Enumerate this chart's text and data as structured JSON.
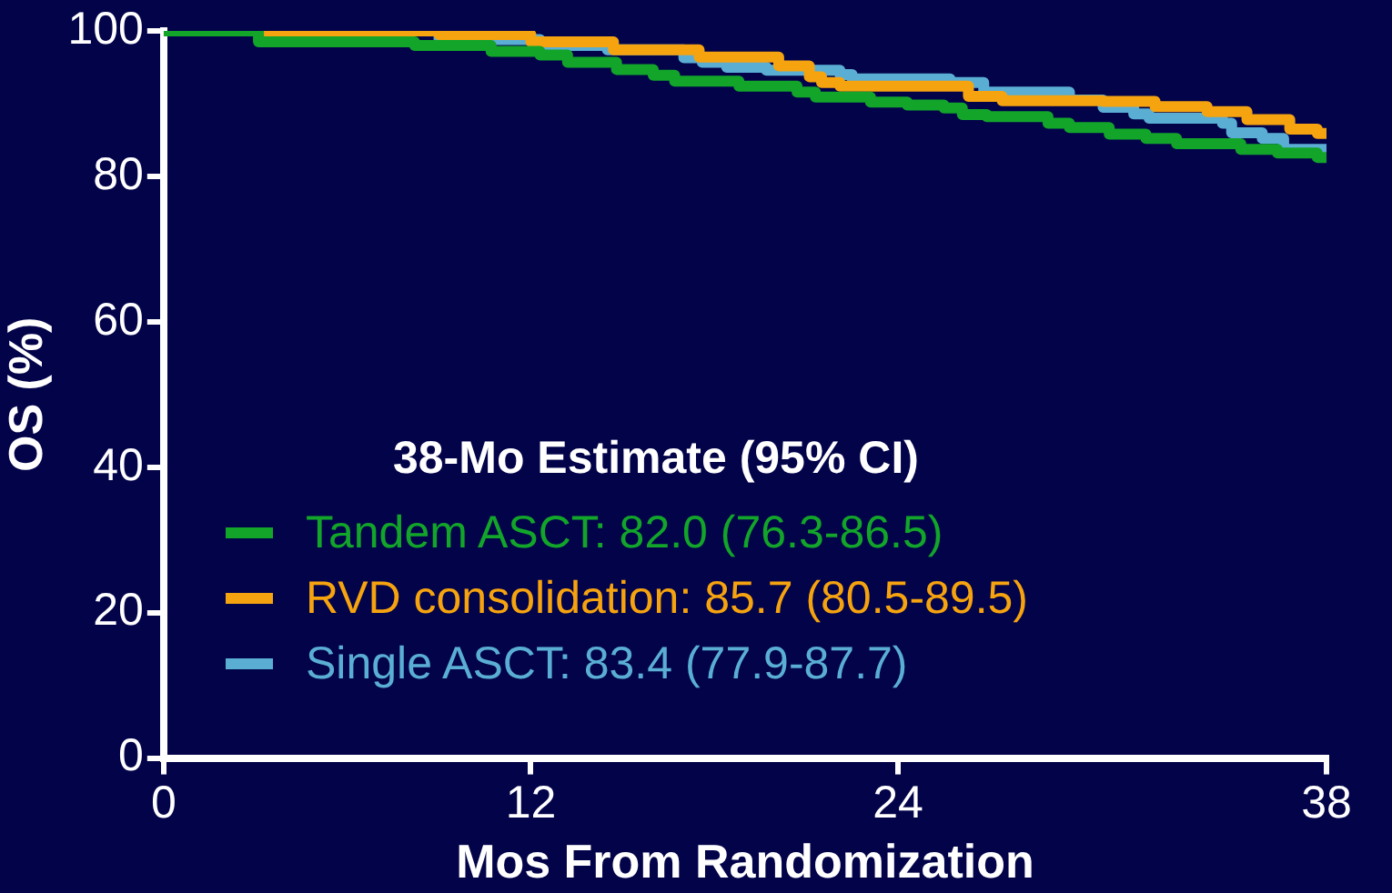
{
  "chart_data": {
    "type": "step",
    "xlabel": "Mos From Randomization",
    "ylabel": "OS (%)",
    "legend_title": "38-Mo Estimate (95% CI)",
    "legend": "bottom left",
    "grid": false,
    "marker": "none",
    "line_style": "solid",
    "xlim": [
      0,
      38
    ],
    "xticks": [
      0,
      12,
      24,
      38
    ],
    "ylim": [
      0,
      100
    ],
    "yticks": [
      0,
      20,
      40,
      60,
      80,
      100
    ],
    "series": [
      {
        "name": "Tandem ASCT: 82.0 (76.3-86.5)",
        "color": "#12a52a",
        "x": [
          0,
          3.1,
          8.2,
          10.7,
          12.3,
          13.2,
          14.8,
          16.0,
          16.7,
          18.8,
          20.7,
          21.3,
          23.1,
          24.3,
          25.5,
          26.1,
          26.9,
          28.9,
          29.6,
          30.9,
          32.1,
          33.1,
          35.2,
          36.4,
          37.7,
          38
        ],
        "values": [
          100,
          98.5,
          98,
          97.2,
          96.7,
          95.7,
          94.7,
          93.9,
          93.1,
          92.4,
          91.6,
          90.9,
          90.2,
          89.8,
          89.4,
          88.5,
          88.2,
          87.3,
          86.7,
          85.8,
          85.2,
          84.5,
          83.7,
          83.2,
          82.6,
          82
        ]
      },
      {
        "name": "RVD consolidation: 85.7 (80.5-89.5)",
        "color": "#f5a30f",
        "x": [
          0,
          9,
          12,
          14.7,
          17.5,
          20.1,
          21.1,
          21.5,
          22.1,
          26.3,
          27.4,
          30.7,
          32.4,
          34.1,
          35.4,
          36.8,
          37.7,
          38
        ],
        "values": [
          100,
          99.5,
          98.5,
          97.4,
          96.4,
          95.2,
          93.7,
          92.9,
          92.4,
          91,
          90.4,
          90.3,
          89.6,
          88.9,
          87.8,
          86.5,
          85.9,
          85.7
        ]
      },
      {
        "name": "Single ASCT: 83.4 (77.9-87.7)",
        "color": "#5aaed4",
        "x": [
          0,
          9,
          12.3,
          14.5,
          17,
          17.6,
          18.4,
          19.7,
          22.1,
          22.5,
          25.7,
          26.8,
          29.6,
          30.7,
          31.7,
          32.2,
          34.6,
          34.9,
          35.9,
          36.6,
          38
        ],
        "values": [
          100,
          98.8,
          98,
          97.4,
          96.3,
          95.7,
          95,
          94.6,
          94,
          93.4,
          92.9,
          91.6,
          90.5,
          89.5,
          88.6,
          88,
          87.3,
          86,
          85.2,
          83.7,
          83.4
        ]
      }
    ]
  }
}
